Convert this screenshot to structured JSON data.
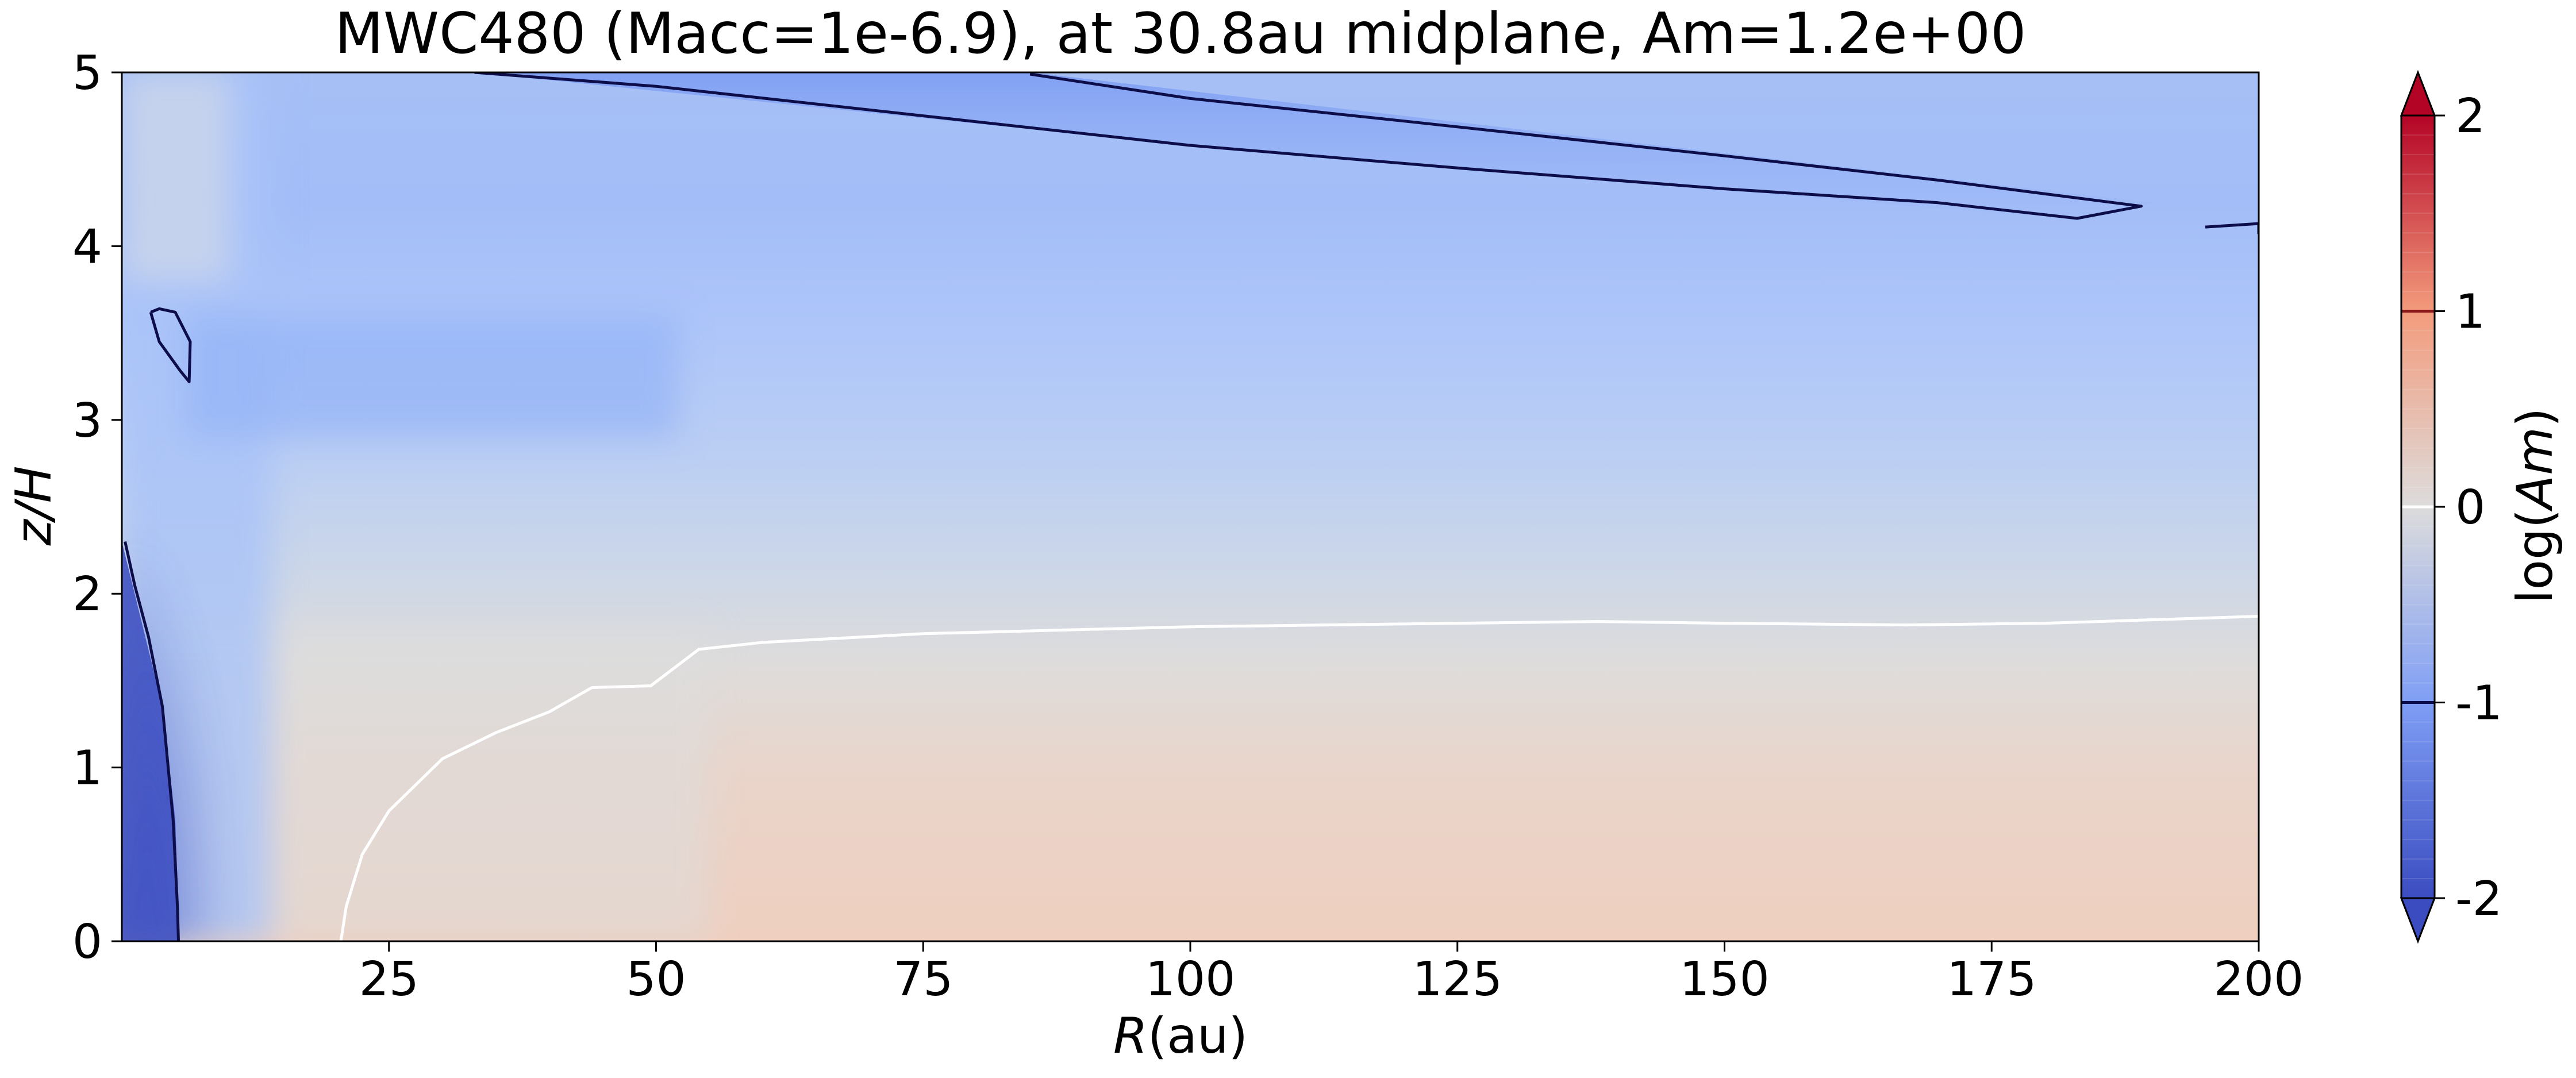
{
  "chart_data": {
    "type": "heatmap",
    "title": "MWC480 (Macc=1e-6.9), at 30.8au midplane, Am=1.2e+00",
    "xlabel": {
      "italic": "R",
      "rest": "(au)"
    },
    "ylabel": {
      "italic": "z/H",
      "rest": ""
    },
    "xlim": [
      0,
      200
    ],
    "ylim": [
      0,
      5
    ],
    "x_ticks": [
      25,
      50,
      75,
      100,
      125,
      150,
      175,
      200
    ],
    "x_tick_labels": [
      "25",
      "50",
      "75",
      "100",
      "125",
      "150",
      "175",
      "200"
    ],
    "y_ticks": [
      0,
      1,
      2,
      3,
      4,
      5
    ],
    "y_tick_labels": [
      "0",
      "1",
      "2",
      "3",
      "4",
      "5"
    ],
    "colorbar": {
      "label": {
        "pre": "log(",
        "italic": "Am",
        "post": ")"
      },
      "range": [
        -2,
        2
      ],
      "ticks": [
        -2,
        -1,
        0,
        1,
        2
      ],
      "tick_labels": [
        "-2",
        "-1",
        "0",
        "1",
        "2"
      ],
      "extend": "both",
      "colormap": "coolwarm",
      "contour_marks": [
        {
          "level": -1,
          "color": "#0d0d4a"
        },
        {
          "level": 0,
          "color": "#ffffff"
        },
        {
          "level": 1,
          "color": "#8b1a1a"
        }
      ]
    },
    "contours": [
      {
        "level": -1,
        "color": "#0d0d4a",
        "name": "upper-band",
        "points": [
          [
            33,
            5.0
          ],
          [
            50,
            4.92
          ],
          [
            75,
            4.75
          ],
          [
            100,
            4.58
          ],
          [
            125,
            4.45
          ],
          [
            150,
            4.33
          ],
          [
            170,
            4.25
          ],
          [
            183,
            4.16
          ],
          [
            189,
            4.23
          ],
          [
            170,
            4.38
          ],
          [
            150,
            4.52
          ],
          [
            120,
            4.72
          ],
          [
            100,
            4.85
          ],
          [
            85,
            4.99
          ]
        ]
      },
      {
        "level": -1,
        "color": "#0d0d4a",
        "name": "inner-loop",
        "points": [
          [
            2.7,
            3.62
          ],
          [
            3.5,
            3.45
          ],
          [
            5.5,
            3.28
          ],
          [
            6.3,
            3.22
          ],
          [
            6.4,
            3.45
          ],
          [
            5.0,
            3.62
          ],
          [
            3.5,
            3.64
          ],
          [
            2.7,
            3.62
          ]
        ]
      },
      {
        "level": -1,
        "color": "#0d0d4a",
        "name": "inner-edge",
        "points": [
          [
            0.3,
            2.3
          ],
          [
            1.2,
            2.05
          ],
          [
            2.5,
            1.75
          ],
          [
            3.8,
            1.35
          ],
          [
            4.8,
            0.7
          ],
          [
            5.2,
            0.2
          ],
          [
            5.3,
            0
          ]
        ]
      },
      {
        "level": -1,
        "color": "#0d0d4a",
        "name": "right-edge",
        "points": [
          [
            195,
            4.11
          ],
          [
            200,
            4.13
          ],
          [
            200,
            4.07
          ]
        ]
      },
      {
        "level": 0,
        "color": "#ffffff",
        "name": "zero-contour",
        "points": [
          [
            20.5,
            0
          ],
          [
            21,
            0.2
          ],
          [
            22.5,
            0.5
          ],
          [
            25,
            0.75
          ],
          [
            30,
            1.05
          ],
          [
            35,
            1.2
          ],
          [
            40,
            1.32
          ],
          [
            44,
            1.46
          ],
          [
            49.5,
            1.47
          ],
          [
            54,
            1.68
          ],
          [
            60,
            1.72
          ],
          [
            75,
            1.77
          ],
          [
            100,
            1.81
          ],
          [
            125,
            1.83
          ],
          [
            138,
            1.84
          ],
          [
            150,
            1.83
          ],
          [
            167,
            1.82
          ],
          [
            180,
            1.83
          ],
          [
            200,
            1.87
          ]
        ]
      }
    ]
  }
}
